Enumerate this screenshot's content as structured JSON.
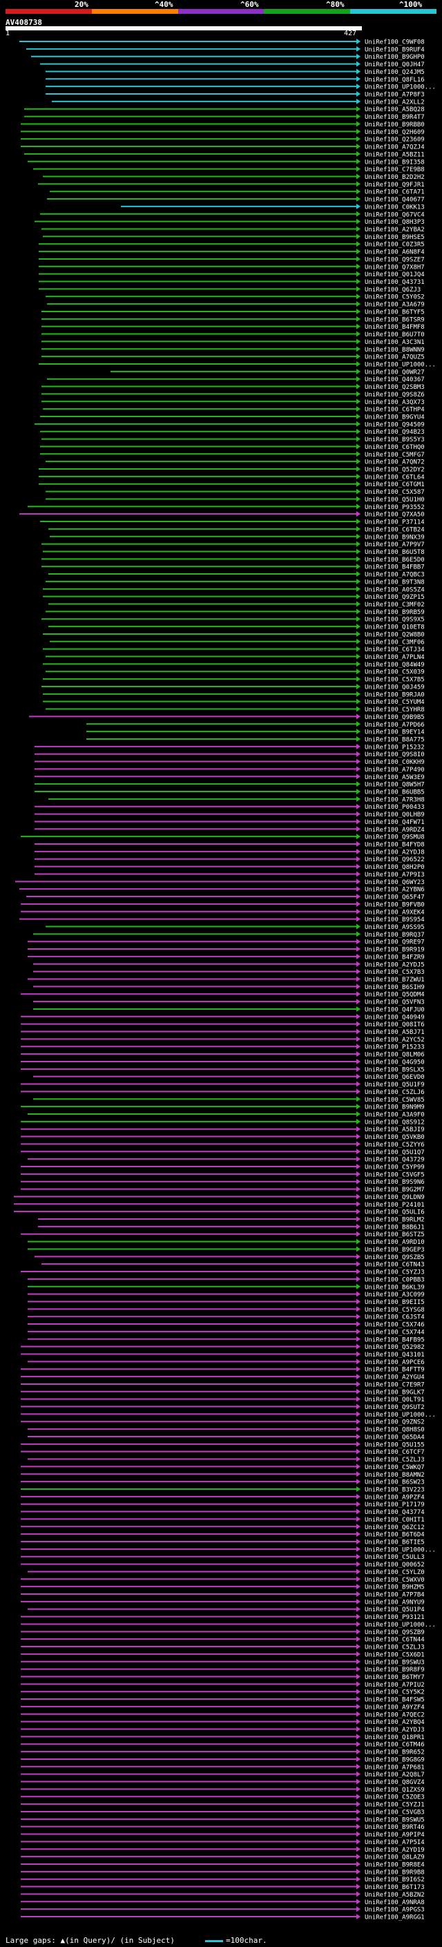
{
  "scale": {
    "labels": [
      "20%",
      "^40%",
      "^60%",
      "^80%",
      "^100%"
    ],
    "colors": [
      "#d61c1c",
      "#ff7f00",
      "#8e2fc7",
      "#11a31a",
      "#25c6d6"
    ]
  },
  "query": {
    "id": "AV408738",
    "start": "1",
    "end": "427"
  },
  "colors": {
    "cyan": "#25c6d6",
    "green": "#27b71d",
    "magenta": "#c43bc6",
    "grey": "#888888"
  },
  "hits": [
    {
      "id": "UniRef100_C9WF08",
      "color": "cyan"
    },
    {
      "id": "UniRef100_B9RUF4",
      "color": "cyan"
    },
    {
      "id": "UniRef100_B9GHP0",
      "color": "cyan"
    },
    {
      "id": "UniRef100_Q0JH47",
      "color": "cyan"
    },
    {
      "id": "UniRef100_Q24JM5",
      "color": "cyan"
    },
    {
      "id": "UniRef100_Q8FL16",
      "color": "cyan"
    },
    {
      "id": "UniRef100_UP1000...",
      "color": "cyan"
    },
    {
      "id": "UniRef100_A7P8F3",
      "color": "cyan"
    },
    {
      "id": "UniRef100_A2XLL2",
      "color": "cyan"
    },
    {
      "id": "UniRef100_A5BQ28",
      "color": "green"
    },
    {
      "id": "UniRef100_B9R4T7",
      "color": "green"
    },
    {
      "id": "UniRef100_B9RBB0",
      "color": "green"
    },
    {
      "id": "UniRef100_Q2H609",
      "color": "green"
    },
    {
      "id": "UniRef100_Q23609",
      "color": "green"
    },
    {
      "id": "UniRef100_A7QZJ4",
      "color": "green"
    },
    {
      "id": "UniRef100_A5BZ11",
      "color": "green"
    },
    {
      "id": "UniRef100_B9I358",
      "color": "green"
    },
    {
      "id": "UniRef100_C7E9B8",
      "color": "green"
    },
    {
      "id": "UniRef100_B2D2H2",
      "color": "green"
    },
    {
      "id": "UniRef100_Q9FJR1",
      "color": "green"
    },
    {
      "id": "UniRef100_C6TA71",
      "color": "green"
    },
    {
      "id": "UniRef100_Q40677",
      "color": "green"
    },
    {
      "id": "UniRef100_C0KK13",
      "color": "cyan"
    },
    {
      "id": "UniRef100_Q67VC4",
      "color": "green"
    },
    {
      "id": "UniRef100_Q8H3P3",
      "color": "green"
    },
    {
      "id": "UniRef100_A2YBA2",
      "color": "green"
    },
    {
      "id": "UniRef100_B9HSE5",
      "color": "green"
    },
    {
      "id": "UniRef100_C0Z3R5",
      "color": "green"
    },
    {
      "id": "UniRef100_A6N8F4",
      "color": "green"
    },
    {
      "id": "UniRef100_Q9SZE7",
      "color": "green"
    },
    {
      "id": "UniRef100_Q7X8H7",
      "color": "green"
    },
    {
      "id": "UniRef100_Q01JQ4",
      "color": "green"
    },
    {
      "id": "UniRef100_Q43731",
      "color": "green"
    },
    {
      "id": "UniRef100_Q6ZJ3",
      "color": "green"
    },
    {
      "id": "UniRef100_C5Y0S2",
      "color": "green"
    },
    {
      "id": "UniRef100_A3A679",
      "color": "green"
    },
    {
      "id": "UniRef100_B6TYF5",
      "color": "green"
    },
    {
      "id": "UniRef100_B6TSR9",
      "color": "green"
    },
    {
      "id": "UniRef100_B4FMF8",
      "color": "green"
    },
    {
      "id": "UniRef100_B6U7T0",
      "color": "green"
    },
    {
      "id": "UniRef100_A3C3N1",
      "color": "green"
    },
    {
      "id": "UniRef100_B8WNN9",
      "color": "green"
    },
    {
      "id": "UniRef100_A7QUZ5",
      "color": "green"
    },
    {
      "id": "UniRef100_UP1000...",
      "color": "green"
    },
    {
      "id": "UniRef100_Q0WR27",
      "color": "green"
    },
    {
      "id": "UniRef100_Q40367",
      "color": "green"
    },
    {
      "id": "UniRef100_Q2SBM3",
      "color": "green"
    },
    {
      "id": "UniRef100_Q9S8Z6",
      "color": "green"
    },
    {
      "id": "UniRef100_A3QX73",
      "color": "green"
    },
    {
      "id": "UniRef100_C6THP4",
      "color": "green"
    },
    {
      "id": "UniRef100_B9GYU4",
      "color": "green"
    },
    {
      "id": "UniRef100_Q94509",
      "color": "green"
    },
    {
      "id": "UniRef100_Q94B23",
      "color": "green"
    },
    {
      "id": "UniRef100_B9S5Y3",
      "color": "green"
    },
    {
      "id": "UniRef100_C6THQ0",
      "color": "green"
    },
    {
      "id": "UniRef100_C5MFG7",
      "color": "green"
    },
    {
      "id": "UniRef100_A7QN72",
      "color": "green"
    },
    {
      "id": "UniRef100_Q52DY2",
      "color": "green"
    },
    {
      "id": "UniRef100_C6TL64",
      "color": "green"
    },
    {
      "id": "UniRef100_C6TGM1",
      "color": "green"
    },
    {
      "id": "UniRef100_C5X587",
      "color": "green"
    },
    {
      "id": "UniRef100_Q5U1H0",
      "color": "green"
    },
    {
      "id": "UniRef100_P93552",
      "color": "green"
    },
    {
      "id": "UniRef100_Q7XA50",
      "color": "magenta"
    },
    {
      "id": "UniRef100_P37114",
      "color": "green"
    },
    {
      "id": "UniRef100_C6TB24",
      "color": "green"
    },
    {
      "id": "UniRef100_B9NX39",
      "color": "green"
    },
    {
      "id": "UniRef100_A7P9V7",
      "color": "green"
    },
    {
      "id": "UniRef100_B6U5T8",
      "color": "green"
    },
    {
      "id": "UniRef100_B6E5D0",
      "color": "green"
    },
    {
      "id": "UniRef100_B4FBB7",
      "color": "green"
    },
    {
      "id": "UniRef100_A7QBC3",
      "color": "green"
    },
    {
      "id": "UniRef100_B9T3N8",
      "color": "green"
    },
    {
      "id": "UniRef100_A0S5Z4",
      "color": "green"
    },
    {
      "id": "UniRef100_Q9ZP15",
      "color": "green"
    },
    {
      "id": "UniRef100_C3MF02",
      "color": "green"
    },
    {
      "id": "UniRef100_B9RB59",
      "color": "green"
    },
    {
      "id": "UniRef100_Q9S9X5",
      "color": "green"
    },
    {
      "id": "UniRef100_Q10ET8",
      "color": "green"
    },
    {
      "id": "UniRef100_Q2W8B0",
      "color": "green"
    },
    {
      "id": "UniRef100_C3MF06",
      "color": "green"
    },
    {
      "id": "UniRef100_C6TJ34",
      "color": "green"
    },
    {
      "id": "UniRef100_A7PLN4",
      "color": "green"
    },
    {
      "id": "UniRef100_Q84W49",
      "color": "green"
    },
    {
      "id": "UniRef100_C5X039",
      "color": "green"
    },
    {
      "id": "UniRef100_C5X7B5",
      "color": "green"
    },
    {
      "id": "UniRef100_Q0J459",
      "color": "green"
    },
    {
      "id": "UniRef100_B9RJA0",
      "color": "green"
    },
    {
      "id": "UniRef100_C5YUM4",
      "color": "green"
    },
    {
      "id": "UniRef100_C5YHR8",
      "color": "green"
    },
    {
      "id": "UniRef100_Q9B9B5",
      "color": "magenta"
    },
    {
      "id": "UniRef100_A7PD66",
      "color": "green"
    },
    {
      "id": "UniRef100_B9EY14",
      "color": "green"
    },
    {
      "id": "UniRef100_B8A775",
      "color": "green"
    },
    {
      "id": "UniRef100_P15232",
      "color": "magenta"
    },
    {
      "id": "UniRef100_Q9S8I0",
      "color": "magenta"
    },
    {
      "id": "UniRef100_C0KKH9",
      "color": "magenta"
    },
    {
      "id": "UniRef100_A7P490",
      "color": "magenta"
    },
    {
      "id": "UniRef100_A5W3E9",
      "color": "magenta"
    },
    {
      "id": "UniRef100_Q8W5H7",
      "color": "green"
    },
    {
      "id": "UniRef100_B6UBB5",
      "color": "green"
    },
    {
      "id": "UniRef100_A7R3H8",
      "color": "green"
    },
    {
      "id": "UniRef100_P00433",
      "color": "magenta"
    },
    {
      "id": "UniRef100_Q0LHB9",
      "color": "magenta"
    },
    {
      "id": "UniRef100_Q4FW71",
      "color": "magenta"
    },
    {
      "id": "UniRef100_A9RDZ4",
      "color": "magenta"
    },
    {
      "id": "UniRef100_Q9SMU8",
      "color": "green"
    },
    {
      "id": "UniRef100_B4FYD8",
      "color": "magenta"
    },
    {
      "id": "UniRef100_A2YDJ8",
      "color": "magenta"
    },
    {
      "id": "UniRef100_Q96522",
      "color": "magenta"
    },
    {
      "id": "UniRef100_Q8H2P0",
      "color": "magenta"
    },
    {
      "id": "UniRef100_A7P9I3",
      "color": "magenta"
    },
    {
      "id": "UniRef100_Q6WY23",
      "color": "magenta"
    },
    {
      "id": "UniRef100_A2YBN6",
      "color": "magenta"
    },
    {
      "id": "UniRef100_Q65F47",
      "color": "magenta"
    },
    {
      "id": "UniRef100_B9FVB0",
      "color": "magenta"
    },
    {
      "id": "UniRef100_A9XEK4",
      "color": "magenta"
    },
    {
      "id": "UniRef100_B9S954",
      "color": "magenta"
    },
    {
      "id": "UniRef100_A9SS95",
      "color": "green"
    },
    {
      "id": "UniRef100_B9RQ37",
      "color": "green"
    },
    {
      "id": "UniRef100_Q9RE97",
      "color": "magenta"
    },
    {
      "id": "UniRef100_B9R919",
      "color": "magenta"
    },
    {
      "id": "UniRef100_B4FZR9",
      "color": "magenta"
    },
    {
      "id": "UniRef100_A2YDJ5",
      "color": "magenta"
    },
    {
      "id": "UniRef100_C5X7B3",
      "color": "magenta"
    },
    {
      "id": "UniRef100_B7ZWU1",
      "color": "magenta"
    },
    {
      "id": "UniRef100_B6SIH9",
      "color": "magenta"
    },
    {
      "id": "UniRef100_Q5QDM4",
      "color": "magenta"
    },
    {
      "id": "UniRef100_Q5VFN3",
      "color": "magenta"
    },
    {
      "id": "UniRef100_Q4FJU0",
      "color": "green"
    },
    {
      "id": "UniRef100_Q40949",
      "color": "magenta"
    },
    {
      "id": "UniRef100_Q08IT6",
      "color": "magenta"
    },
    {
      "id": "UniRef100_A5BJ71",
      "color": "magenta"
    },
    {
      "id": "UniRef100_A2YC52",
      "color": "magenta"
    },
    {
      "id": "UniRef100_P15233",
      "color": "magenta"
    },
    {
      "id": "UniRef100_Q8LM06",
      "color": "magenta"
    },
    {
      "id": "UniRef100_Q4G950",
      "color": "magenta"
    },
    {
      "id": "UniRef100_B9SLX5",
      "color": "magenta"
    },
    {
      "id": "UniRef100_Q6EVD0",
      "color": "magenta"
    },
    {
      "id": "UniRef100_Q5U1F9",
      "color": "magenta"
    },
    {
      "id": "UniRef100_C5ZLJ6",
      "color": "magenta"
    },
    {
      "id": "UniRef100_C5WV85",
      "color": "green"
    },
    {
      "id": "UniRef100_B9N9M9",
      "color": "green"
    },
    {
      "id": "UniRef100_A3A9F0",
      "color": "green"
    },
    {
      "id": "UniRef100_Q8S912",
      "color": "green"
    },
    {
      "id": "UniRef100_A5BJI9",
      "color": "magenta"
    },
    {
      "id": "UniRef100_Q5VKB0",
      "color": "magenta"
    },
    {
      "id": "UniRef100_C5ZYY6",
      "color": "magenta"
    },
    {
      "id": "UniRef100_Q5U1Q7",
      "color": "magenta"
    },
    {
      "id": "UniRef100_Q43729",
      "color": "magenta"
    },
    {
      "id": "UniRef100_C5YP99",
      "color": "magenta"
    },
    {
      "id": "UniRef100_C5VGF5",
      "color": "magenta"
    },
    {
      "id": "UniRef100_B9S9N6",
      "color": "magenta"
    },
    {
      "id": "UniRef100_B9G2M7",
      "color": "magenta"
    },
    {
      "id": "UniRef100_Q9LDN9",
      "color": "magenta"
    },
    {
      "id": "UniRef100_P24101",
      "color": "magenta"
    },
    {
      "id": "UniRef100_Q5ULI6",
      "color": "magenta"
    },
    {
      "id": "UniRef100_B9RLM2",
      "color": "magenta"
    },
    {
      "id": "UniRef100_B8B6J1",
      "color": "magenta"
    },
    {
      "id": "UniRef100_B6STZ5",
      "color": "magenta"
    },
    {
      "id": "UniRef100_A9RD10",
      "color": "green"
    },
    {
      "id": "UniRef100_B9GEP3",
      "color": "green"
    },
    {
      "id": "UniRef100_Q9SZB5",
      "color": "magenta"
    },
    {
      "id": "UniRef100_C6TN43",
      "color": "magenta"
    },
    {
      "id": "UniRef100_C5YZJ3",
      "color": "magenta"
    },
    {
      "id": "UniRef100_C0PBB3",
      "color": "magenta"
    },
    {
      "id": "UniRef100_B6KL39",
      "color": "green"
    },
    {
      "id": "UniRef100_A3C099",
      "color": "magenta"
    },
    {
      "id": "UniRef100_B9EII5",
      "color": "magenta"
    },
    {
      "id": "UniRef100_C5YSG8",
      "color": "magenta"
    },
    {
      "id": "UniRef100_C6JST4",
      "color": "magenta"
    },
    {
      "id": "UniRef100_C5X746",
      "color": "magenta"
    },
    {
      "id": "UniRef100_C5X744",
      "color": "magenta"
    },
    {
      "id": "UniRef100_B4FB95",
      "color": "magenta"
    },
    {
      "id": "UniRef100_Q52982",
      "color": "magenta"
    },
    {
      "id": "UniRef100_Q43101",
      "color": "magenta"
    },
    {
      "id": "UniRef100_A9PCE6",
      "color": "magenta"
    },
    {
      "id": "UniRef100_B4FTT9",
      "color": "magenta"
    },
    {
      "id": "UniRef100_A2YGU4",
      "color": "magenta"
    },
    {
      "id": "UniRef100_C7E9R7",
      "color": "magenta"
    },
    {
      "id": "UniRef100_B9GLK7",
      "color": "magenta"
    },
    {
      "id": "UniRef100_Q0LT91",
      "color": "magenta"
    },
    {
      "id": "UniRef100_Q9SUT2",
      "color": "magenta"
    },
    {
      "id": "UniRef100_UP1000...",
      "color": "magenta"
    },
    {
      "id": "UniRef100_Q9ZNS2",
      "color": "magenta"
    },
    {
      "id": "UniRef100_Q8H8S0",
      "color": "magenta"
    },
    {
      "id": "UniRef100_Q65DA4",
      "color": "magenta"
    },
    {
      "id": "UniRef100_Q5U155",
      "color": "magenta"
    },
    {
      "id": "UniRef100_C6TCF7",
      "color": "magenta"
    },
    {
      "id": "UniRef100_C5ZLJ3",
      "color": "magenta"
    },
    {
      "id": "UniRef100_C5WKQ7",
      "color": "magenta"
    },
    {
      "id": "UniRef100_B8AMN2",
      "color": "magenta"
    },
    {
      "id": "UniRef100_B6SW23",
      "color": "magenta"
    },
    {
      "id": "UniRef100_B3V223",
      "color": "green"
    },
    {
      "id": "UniRef100_A9PZF4",
      "color": "magenta"
    },
    {
      "id": "UniRef100_P17179",
      "color": "magenta"
    },
    {
      "id": "UniRef100_Q43774",
      "color": "magenta"
    },
    {
      "id": "UniRef100_C0HIT1",
      "color": "magenta"
    },
    {
      "id": "UniRef100_Q6ZC12",
      "color": "magenta"
    },
    {
      "id": "UniRef100_B6T6D4",
      "color": "magenta"
    },
    {
      "id": "UniRef100_B6TIE5",
      "color": "magenta"
    },
    {
      "id": "UniRef100_UP1000...",
      "color": "magenta"
    },
    {
      "id": "UniRef100_C5ULL3",
      "color": "magenta"
    },
    {
      "id": "UniRef100_Q00652",
      "color": "magenta"
    },
    {
      "id": "UniRef100_C5YLZ0",
      "color": "magenta"
    },
    {
      "id": "UniRef100_C5WXV0",
      "color": "magenta"
    },
    {
      "id": "UniRef100_B9HZM5",
      "color": "magenta"
    },
    {
      "id": "UniRef100_A7P7B4",
      "color": "magenta"
    },
    {
      "id": "UniRef100_A9NYU9",
      "color": "magenta"
    },
    {
      "id": "UniRef100_Q5U1P4",
      "color": "magenta"
    },
    {
      "id": "UniRef100_P93121",
      "color": "magenta"
    },
    {
      "id": "UniRef100_UP1000...",
      "color": "magenta"
    },
    {
      "id": "UniRef100_Q9SZB9",
      "color": "magenta"
    },
    {
      "id": "UniRef100_C6TN44",
      "color": "magenta"
    },
    {
      "id": "UniRef100_C5ZLJ3",
      "color": "magenta"
    },
    {
      "id": "UniRef100_C5X6D1",
      "color": "magenta"
    },
    {
      "id": "UniRef100_B9SWU3",
      "color": "magenta"
    },
    {
      "id": "UniRef100_B9R8F9",
      "color": "magenta"
    },
    {
      "id": "UniRef100_B6TMY7",
      "color": "magenta"
    },
    {
      "id": "UniRef100_A7PIU2",
      "color": "magenta"
    },
    {
      "id": "UniRef100_C5Y5K2",
      "color": "magenta"
    },
    {
      "id": "UniRef100_B4FSW5",
      "color": "magenta"
    },
    {
      "id": "UniRef100_A9YZF4",
      "color": "magenta"
    },
    {
      "id": "UniRef100_A7QEC2",
      "color": "magenta"
    },
    {
      "id": "UniRef100_A2YBQ4",
      "color": "magenta"
    },
    {
      "id": "UniRef100_A2YDJ3",
      "color": "magenta"
    },
    {
      "id": "UniRef100_Q18PR1",
      "color": "magenta"
    },
    {
      "id": "UniRef100_C6TM46",
      "color": "magenta"
    },
    {
      "id": "UniRef100_B9R652",
      "color": "magenta"
    },
    {
      "id": "UniRef100_B9G8G9",
      "color": "magenta"
    },
    {
      "id": "UniRef100_A7P681",
      "color": "magenta"
    },
    {
      "id": "UniRef100_A2Q8L7",
      "color": "magenta"
    },
    {
      "id": "UniRef100_Q8GVZ4",
      "color": "magenta"
    },
    {
      "id": "UniRef100_Q1ZXS9",
      "color": "magenta"
    },
    {
      "id": "UniRef100_C5ZOE3",
      "color": "magenta"
    },
    {
      "id": "UniRef100_C5YZJ1",
      "color": "magenta"
    },
    {
      "id": "UniRef100_C5VGB3",
      "color": "magenta"
    },
    {
      "id": "UniRef100_B9SWU5",
      "color": "magenta"
    },
    {
      "id": "UniRef100_B9RT46",
      "color": "magenta"
    },
    {
      "id": "UniRef100_A9PIP4",
      "color": "magenta"
    },
    {
      "id": "UniRef100_A7P5I4",
      "color": "magenta"
    },
    {
      "id": "UniRef100_A2YD19",
      "color": "magenta"
    },
    {
      "id": "UniRef100_Q8LAZ9",
      "color": "magenta"
    },
    {
      "id": "UniRef100_B9R8E4",
      "color": "magenta"
    },
    {
      "id": "UniRef100_B9R9B8",
      "color": "magenta"
    },
    {
      "id": "UniRef100_B9I6S2",
      "color": "magenta"
    },
    {
      "id": "UniRef100_B6T173",
      "color": "magenta"
    },
    {
      "id": "UniRef100_A5BZN2",
      "color": "magenta"
    },
    {
      "id": "UniRef100_A9NRA8",
      "color": "magenta"
    },
    {
      "id": "UniRef100_A9PGS3",
      "color": "magenta"
    },
    {
      "id": "UniRef100_A9RGG1",
      "color": "magenta"
    }
  ],
  "footer": {
    "text": "Large gaps: ▲(in Query)/ (in Subject)",
    "legend": "=100char."
  }
}
